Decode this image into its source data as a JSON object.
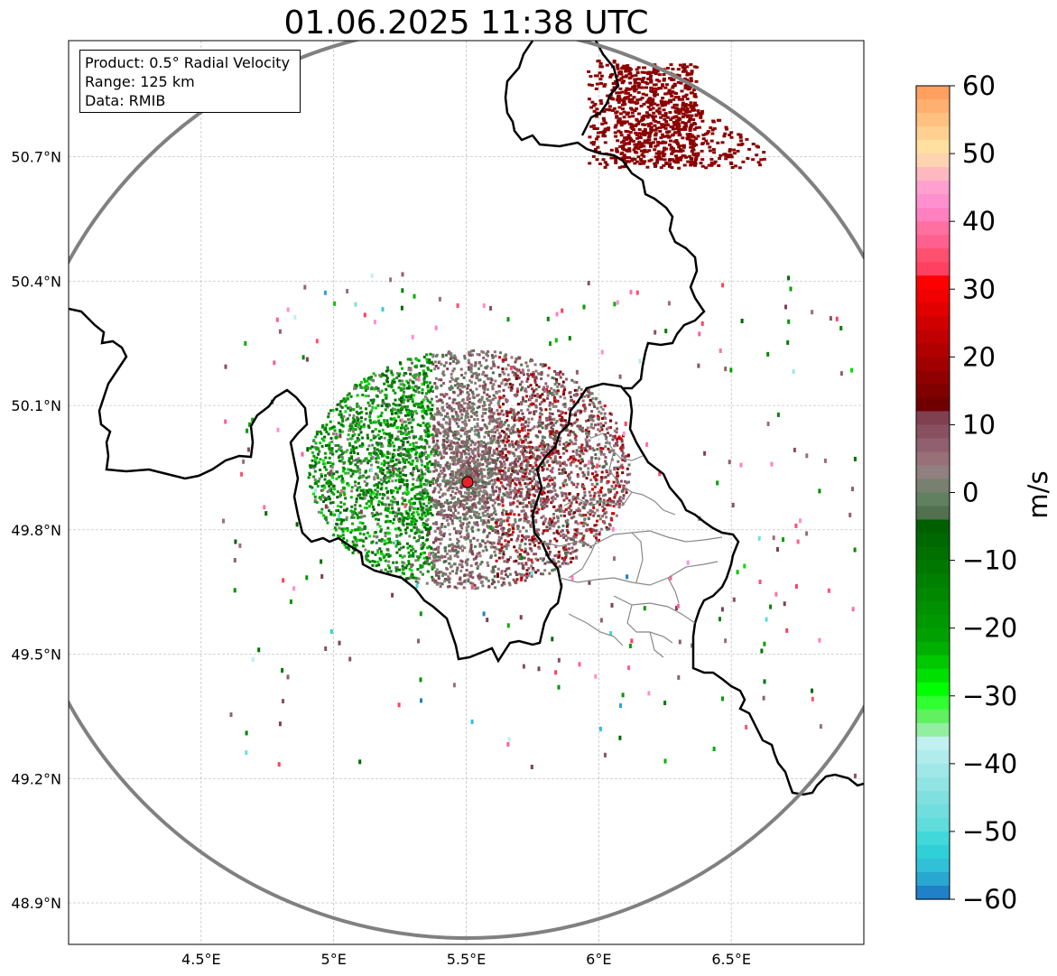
{
  "title": "01.06.2025 11:38 UTC",
  "info": {
    "product": "Product: 0.5° Radial Velocity",
    "range": "Range: 125 km",
    "source": "Data: RMIB"
  },
  "map": {
    "lon_range": [
      4.0,
      7.0
    ],
    "lat_range": [
      48.8,
      50.98
    ],
    "lon_ticks": [
      {
        "value": 4.5,
        "label": "4.5°E"
      },
      {
        "value": 5.0,
        "label": "5°E"
      },
      {
        "value": 5.5,
        "label": "5.5°E"
      },
      {
        "value": 6.0,
        "label": "6°E"
      },
      {
        "value": 6.5,
        "label": "6.5°E"
      }
    ],
    "lat_ticks": [
      {
        "value": 50.7,
        "label": "50.7°N"
      },
      {
        "value": 50.4,
        "label": "50.4°N"
      },
      {
        "value": 50.1,
        "label": "50.1°N"
      },
      {
        "value": 49.8,
        "label": "49.8°N"
      },
      {
        "value": 49.5,
        "label": "49.5°N"
      },
      {
        "value": 49.2,
        "label": "49.2°N"
      },
      {
        "value": 48.9,
        "label": "48.9°N"
      }
    ],
    "radar_site": {
      "lon": 5.505,
      "lat": 49.915
    },
    "range_km": 125,
    "grid": true,
    "colors": {
      "ring": "#808080",
      "border_national": "#000000",
      "border_regional": "#808080",
      "site_marker": "#e8202a"
    }
  },
  "colorbar": {
    "label": "m/s",
    "min": -60,
    "max": 60,
    "ticks": [
      {
        "value": 60,
        "label": "60"
      },
      {
        "value": 50,
        "label": "50"
      },
      {
        "value": 40,
        "label": "40"
      },
      {
        "value": 30,
        "label": "30"
      },
      {
        "value": 20,
        "label": "20"
      },
      {
        "value": 10,
        "label": "10"
      },
      {
        "value": 0,
        "label": "0"
      },
      {
        "value": -10,
        "label": "−10"
      },
      {
        "value": -20,
        "label": "−20"
      },
      {
        "value": -30,
        "label": "−30"
      },
      {
        "value": -40,
        "label": "−40"
      },
      {
        "value": -50,
        "label": "−50"
      },
      {
        "value": -60,
        "label": "−60"
      }
    ],
    "colors_top_to_bottom": [
      "#ffa060",
      "#ffb070",
      "#ffc080",
      "#ffd090",
      "#ffe0a0",
      "#ffd4b0",
      "#ffb8c0",
      "#ffa0d0",
      "#ff90d0",
      "#ff80c0",
      "#ff70a0",
      "#ff6090",
      "#ff5070",
      "#ff4060",
      "#ff0000",
      "#f00000",
      "#e00000",
      "#d00000",
      "#c00000",
      "#b00000",
      "#a00000",
      "#900000",
      "#800000",
      "#700000",
      "#804050",
      "#885060",
      "#906070",
      "#987078",
      "#908080",
      "#788070",
      "#608060",
      "#507050",
      "#006000",
      "#006800",
      "#007000",
      "#007800",
      "#008000",
      "#008800",
      "#009000",
      "#009800",
      "#00a000",
      "#00b000",
      "#00c800",
      "#00e000",
      "#00ff00",
      "#30ff30",
      "#60f060",
      "#90f0a0",
      "#c0f0f0",
      "#b0ecec",
      "#a0e8e8",
      "#90e4e4",
      "#80e0e0",
      "#70dede",
      "#60dcdc",
      "#40d8d8",
      "#30d0d8",
      "#30c0d8",
      "#28a8d0",
      "#2080c8"
    ]
  }
}
